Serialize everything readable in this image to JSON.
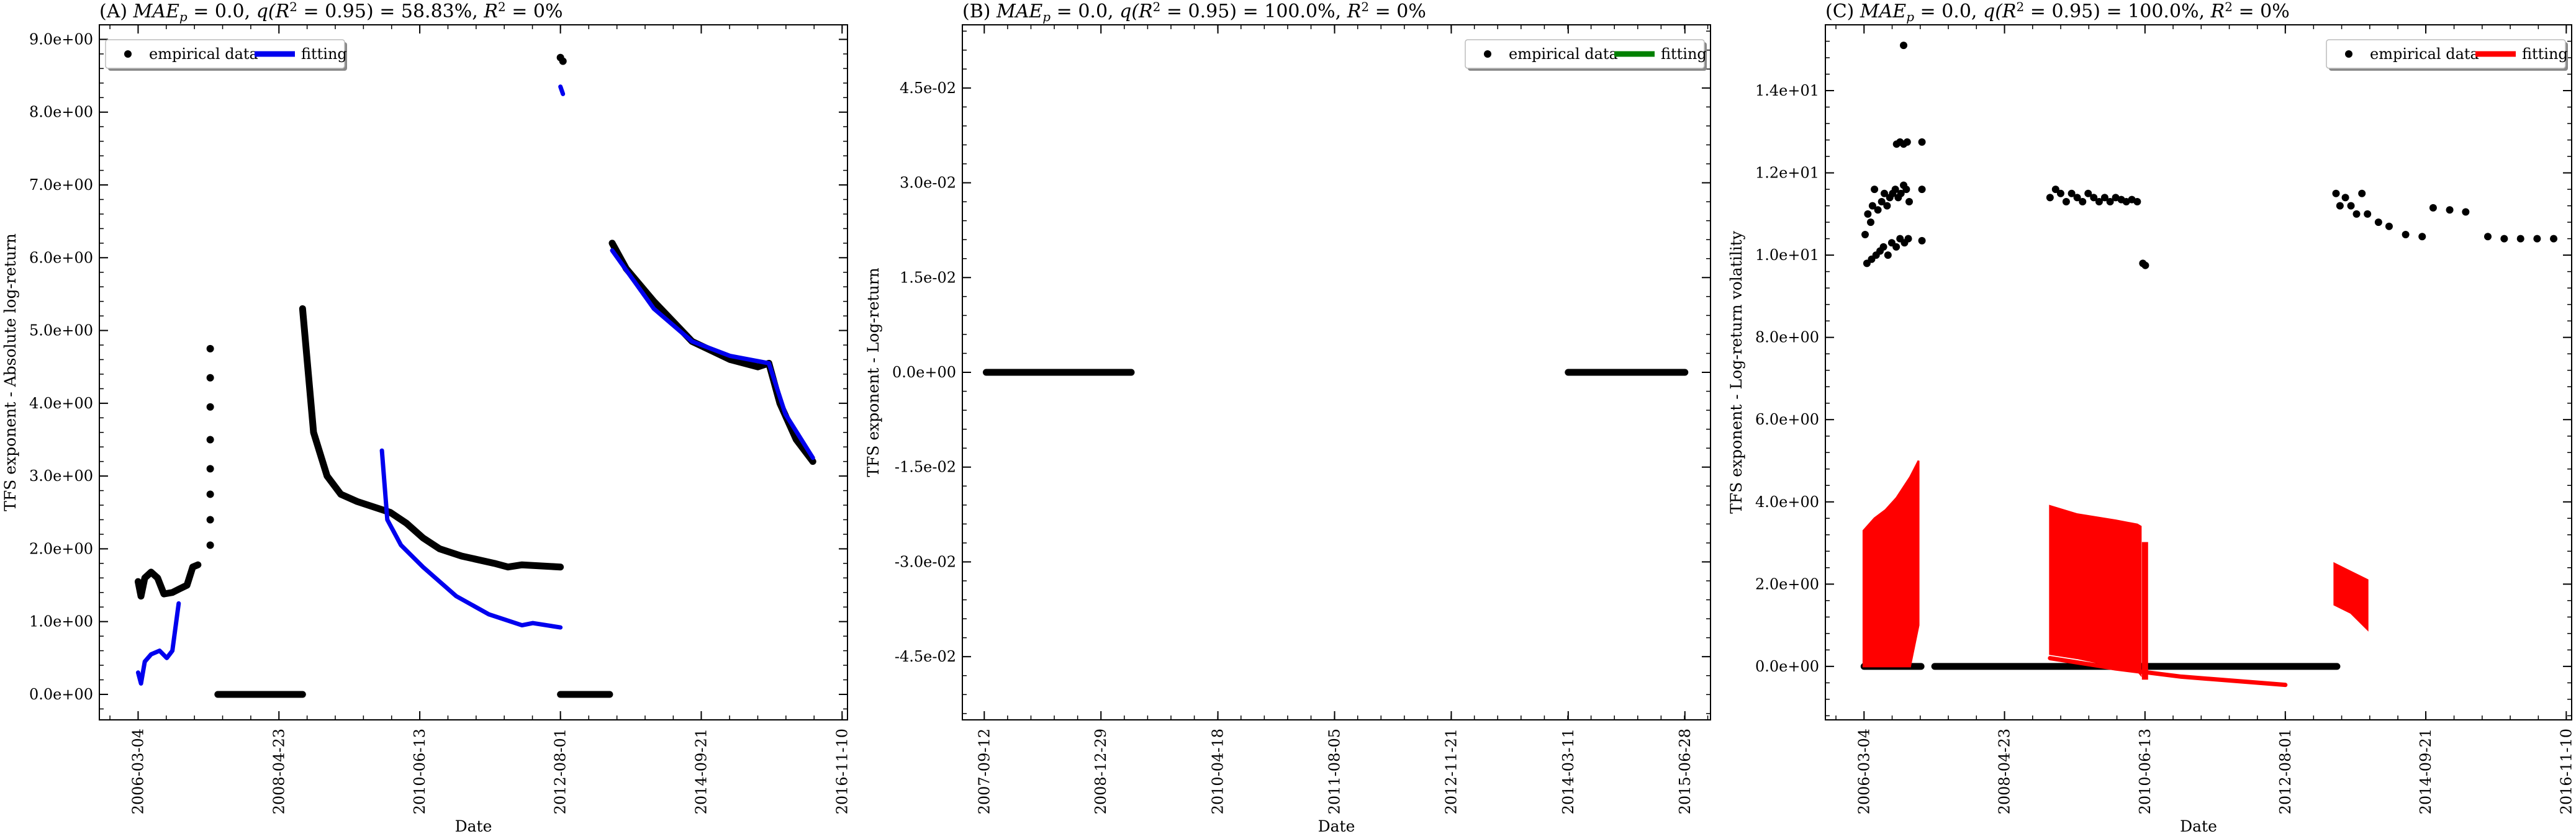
{
  "figure": {
    "title": ""
  },
  "chart_data": [
    {
      "id": "A",
      "type": "scatter",
      "title": "(A) MAE_p = 0.0, q(R² = 0.95) = 58.83%, R² = 0%",
      "title_parts": {
        "prefix": "(A) ",
        "mae_label": "MAE",
        "mae_sub": "p",
        "mae_value": " = 0.0, ",
        "q_label": "q(R",
        "q_tail": " = 0.95) = 58.83%, ",
        "r2_label": "R",
        "r2_tail": " = 0%"
      },
      "xlabel": "Date",
      "ylabel": "TFS exponent - Absolute log-return",
      "x_ticks": [
        "2006-03-04",
        "2008-04-23",
        "2010-06-13",
        "2012-08-01",
        "2014-09-21",
        "2016-11-10"
      ],
      "xlim": [
        "2005-08-01",
        "2016-12-10"
      ],
      "y_ticks": [
        "0.0e+00",
        "1.0e+00",
        "2.0e+00",
        "3.0e+00",
        "4.0e+00",
        "5.0e+00",
        "6.0e+00",
        "7.0e+00",
        "8.0e+00",
        "9.0e+00"
      ],
      "ylim": [
        -0.35,
        9.2
      ],
      "legend": {
        "position": "top-left",
        "entries": [
          "empirical data",
          "fitting"
        ]
      },
      "fit_color": "#0000ee",
      "empirical_color": "#000000",
      "series": [
        {
          "name": "empirical data",
          "kind": "thick",
          "points": [
            [
              "2006-03-04",
              1.55
            ],
            [
              "2006-03-20",
              1.35
            ],
            [
              "2006-04-10",
              1.6
            ],
            [
              "2006-05-15",
              1.68
            ],
            [
              "2006-06-20",
              1.6
            ],
            [
              "2006-07-25",
              1.38
            ],
            [
              "2006-09-10",
              1.4
            ],
            [
              "2006-10-20",
              1.45
            ],
            [
              "2006-11-30",
              1.5
            ],
            [
              "2007-01-01",
              1.75
            ],
            [
              "2007-01-30",
              1.78
            ]
          ]
        },
        {
          "name": "empirical data",
          "kind": "dots",
          "points": [
            [
              "2007-04-08",
              2.05
            ],
            [
              "2007-04-08",
              2.4
            ],
            [
              "2007-04-08",
              2.75
            ],
            [
              "2007-04-08",
              3.1
            ],
            [
              "2007-04-08",
              3.5
            ],
            [
              "2007-04-08",
              3.95
            ],
            [
              "2007-04-08",
              4.35
            ],
            [
              "2007-04-08",
              4.75
            ]
          ]
        },
        {
          "name": "empirical data",
          "kind": "thick",
          "points": [
            [
              "2007-05-20",
              0.0
            ],
            [
              "2008-09-01",
              0.0
            ]
          ]
        },
        {
          "name": "empirical data",
          "kind": "thick",
          "points": [
            [
              "2008-09-01",
              5.3
            ],
            [
              "2008-11-01",
              3.6
            ],
            [
              "2009-01-15",
              3.0
            ],
            [
              "2009-04-01",
              2.75
            ],
            [
              "2009-07-01",
              2.65
            ],
            [
              "2010-01-01",
              2.5
            ],
            [
              "2010-04-01",
              2.35
            ],
            [
              "2010-07-01",
              2.15
            ],
            [
              "2010-10-01",
              2.0
            ],
            [
              "2011-02-01",
              1.9
            ],
            [
              "2011-08-01",
              1.8
            ],
            [
              "2011-10-15",
              1.75
            ],
            [
              "2012-01-01",
              1.78
            ],
            [
              "2012-08-01",
              1.75
            ]
          ]
        },
        {
          "name": "empirical data",
          "kind": "dots",
          "points": [
            [
              "2012-08-01",
              8.75
            ],
            [
              "2012-08-15",
              8.7
            ]
          ]
        },
        {
          "name": "empirical data",
          "kind": "thick",
          "points": [
            [
              "2012-08-01",
              0.0
            ],
            [
              "2013-05-01",
              0.0
            ]
          ]
        },
        {
          "name": "empirical data",
          "kind": "thick",
          "points": [
            [
              "2013-05-15",
              6.2
            ],
            [
              "2013-08-01",
              5.85
            ],
            [
              "2014-01-01",
              5.4
            ],
            [
              "2014-08-01",
              4.85
            ],
            [
              "2015-03-01",
              4.6
            ],
            [
              "2015-08-01",
              4.5
            ],
            [
              "2015-10-01",
              4.55
            ],
            [
              "2015-12-01",
              4.0
            ],
            [
              "2016-03-01",
              3.5
            ],
            [
              "2016-06-01",
              3.2
            ]
          ]
        },
        {
          "name": "fitting",
          "kind": "line",
          "points": [
            [
              "2006-03-04",
              0.3
            ],
            [
              "2006-03-20",
              0.15
            ],
            [
              "2006-04-10",
              0.45
            ],
            [
              "2006-05-15",
              0.55
            ],
            [
              "2006-07-01",
              0.6
            ],
            [
              "2006-08-10",
              0.5
            ],
            [
              "2006-09-10",
              0.6
            ],
            [
              "2006-10-15",
              1.25
            ]
          ]
        },
        {
          "name": "fitting",
          "kind": "line",
          "points": [
            [
              "2009-11-15",
              3.35
            ],
            [
              "2009-12-15",
              2.4
            ],
            [
              "2010-03-01",
              2.05
            ],
            [
              "2010-07-01",
              1.75
            ],
            [
              "2011-01-01",
              1.35
            ],
            [
              "2011-07-01",
              1.1
            ],
            [
              "2012-01-01",
              0.95
            ],
            [
              "2012-03-01",
              0.98
            ],
            [
              "2012-08-01",
              0.92
            ]
          ]
        },
        {
          "name": "fitting",
          "kind": "line",
          "points": [
            [
              "2012-08-01",
              8.35
            ],
            [
              "2012-08-15",
              8.25
            ]
          ]
        },
        {
          "name": "fitting",
          "kind": "line",
          "points": [
            [
              "2013-05-15",
              6.1
            ],
            [
              "2014-01-01",
              5.3
            ],
            [
              "2014-08-01",
              4.85
            ],
            [
              "2015-03-01",
              4.65
            ],
            [
              "2015-10-01",
              4.55
            ],
            [
              "2016-01-01",
              3.85
            ],
            [
              "2016-06-01",
              3.25
            ]
          ]
        }
      ]
    },
    {
      "id": "B",
      "type": "scatter",
      "title": "(B) MAE_p = 0.0, q(R² = 0.95) = 100.0%, R² = 0%",
      "title_parts": {
        "prefix": "(B) ",
        "mae_label": "MAE",
        "mae_sub": "p",
        "mae_value": " = 0.0, ",
        "q_label": "q(R",
        "q_tail": " = 0.95) = 100.0%, ",
        "r2_label": "R",
        "r2_tail": " = 0%"
      },
      "xlabel": "Date",
      "ylabel": "TFS exponent - Log-return",
      "x_ticks": [
        "2007-09-12",
        "2008-12-29",
        "2010-04-18",
        "2011-08-05",
        "2012-11-21",
        "2014-03-11",
        "2015-06-28"
      ],
      "xlim": [
        "2007-06-15",
        "2015-10-10"
      ],
      "y_ticks": [
        "-4.5e-02",
        "-3.0e-02",
        "-1.5e-02",
        "0.0e+00",
        "1.5e-02",
        "3.0e-02",
        "4.5e-02"
      ],
      "ylim": [
        -0.055,
        0.055
      ],
      "legend": {
        "position": "top-right",
        "entries": [
          "empirical data",
          "fitting"
        ]
      },
      "fit_color": "#008000",
      "empirical_color": "#000000",
      "series": [
        {
          "name": "empirical data",
          "kind": "thick",
          "points": [
            [
              "2007-09-20",
              0.0
            ],
            [
              "2009-05-01",
              0.0
            ]
          ]
        },
        {
          "name": "empirical data",
          "kind": "thick",
          "points": [
            [
              "2014-03-11",
              0.0
            ],
            [
              "2015-06-28",
              0.0
            ]
          ]
        }
      ]
    },
    {
      "id": "C",
      "type": "scatter",
      "title": "(C) MAE_p = 0.0, q(R² = 0.95) = 100.0%, R² = 0%",
      "title_parts": {
        "prefix": "(C) ",
        "mae_label": "MAE",
        "mae_sub": "p",
        "mae_value": " = 0.0, ",
        "q_label": "q(R",
        "q_tail": " = 0.95) = 100.0%, ",
        "r2_label": "R",
        "r2_tail": " = 0%"
      },
      "xlabel": "Date",
      "ylabel": "TFS exponent - Log-return volatility",
      "x_ticks": [
        "2006-03-04",
        "2008-04-23",
        "2010-06-13",
        "2012-08-01",
        "2014-09-21",
        "2016-11-10"
      ],
      "xlim": [
        "2005-08-01",
        "2016-12-10"
      ],
      "y_ticks": [
        "0.0e+00",
        "2.0e+00",
        "4.0e+00",
        "6.0e+00",
        "8.0e+00",
        "1.0e+01",
        "1.2e+01",
        "1.4e+01"
      ],
      "ylim": [
        -1.3,
        15.6
      ],
      "legend": {
        "position": "top-right",
        "entries": [
          "empirical data",
          "fitting"
        ]
      },
      "fit_color": "#ff0000",
      "empirical_color": "#000000",
      "series": [
        {
          "name": "empirical data",
          "kind": "thick",
          "points": [
            [
              "2006-03-04",
              0.0
            ],
            [
              "2007-01-15",
              0.0
            ]
          ]
        },
        {
          "name": "empirical data",
          "kind": "thick",
          "points": [
            [
              "2007-04-01",
              0.0
            ],
            [
              "2013-05-15",
              0.0
            ]
          ]
        },
        {
          "name": "empirical data",
          "kind": "dots",
          "points": [
            [
              "2006-03-10",
              10.5
            ],
            [
              "2006-03-25",
              11.0
            ],
            [
              "2006-04-10",
              10.8
            ],
            [
              "2006-04-20",
              11.2
            ],
            [
              "2006-05-01",
              11.6
            ],
            [
              "2006-05-20",
              11.1
            ],
            [
              "2006-06-10",
              11.3
            ],
            [
              "2006-06-25",
              11.5
            ],
            [
              "2006-07-10",
              11.2
            ],
            [
              "2006-07-25",
              11.4
            ],
            [
              "2006-08-10",
              11.5
            ],
            [
              "2006-08-25",
              11.6
            ],
            [
              "2006-09-10",
              11.4
            ],
            [
              "2006-09-25",
              11.5
            ],
            [
              "2006-10-10",
              11.7
            ],
            [
              "2006-10-25",
              11.6
            ],
            [
              "2006-11-10",
              11.3
            ],
            [
              "2006-03-20",
              9.8
            ],
            [
              "2006-04-15",
              9.9
            ],
            [
              "2006-05-10",
              10.0
            ],
            [
              "2006-06-01",
              10.1
            ],
            [
              "2006-06-20",
              10.2
            ],
            [
              "2006-07-15",
              10.0
            ],
            [
              "2006-08-05",
              10.3
            ],
            [
              "2006-08-30",
              10.2
            ],
            [
              "2006-09-20",
              10.4
            ],
            [
              "2006-10-15",
              10.3
            ],
            [
              "2006-11-05",
              10.4
            ],
            [
              "2006-09-01",
              12.7
            ],
            [
              "2006-09-20",
              12.75
            ],
            [
              "2006-10-10",
              12.7
            ],
            [
              "2006-10-30",
              12.75
            ],
            [
              "2007-01-20",
              12.75
            ],
            [
              "2007-01-20",
              11.6
            ],
            [
              "2007-01-20",
              10.35
            ],
            [
              "2006-10-10",
              15.1
            ]
          ]
        },
        {
          "name": "empirical data",
          "kind": "dots",
          "points": [
            [
              "2009-01-01",
              11.4
            ],
            [
              "2009-02-01",
              11.6
            ],
            [
              "2009-03-01",
              11.5
            ],
            [
              "2009-04-01",
              11.3
            ],
            [
              "2009-05-01",
              11.5
            ],
            [
              "2009-06-01",
              11.4
            ],
            [
              "2009-07-01",
              11.3
            ],
            [
              "2009-08-01",
              11.5
            ],
            [
              "2009-09-01",
              11.4
            ],
            [
              "2009-10-01",
              11.3
            ],
            [
              "2009-11-01",
              11.4
            ],
            [
              "2009-12-01",
              11.3
            ],
            [
              "2010-01-01",
              11.4
            ],
            [
              "2010-02-01",
              11.35
            ],
            [
              "2010-03-01",
              11.3
            ],
            [
              "2010-04-01",
              11.35
            ],
            [
              "2010-05-01",
              11.3
            ],
            [
              "2010-06-01",
              9.8
            ],
            [
              "2010-06-15",
              9.75
            ]
          ]
        },
        {
          "name": "empirical data",
          "kind": "dots",
          "points": [
            [
              "2013-05-10",
              11.5
            ],
            [
              "2013-06-01",
              11.2
            ],
            [
              "2013-07-01",
              11.4
            ],
            [
              "2013-08-01",
              11.2
            ],
            [
              "2013-09-01",
              11.0
            ],
            [
              "2013-10-01",
              11.5
            ],
            [
              "2013-11-01",
              11.0
            ],
            [
              "2014-01-01",
              10.8
            ],
            [
              "2014-03-01",
              10.7
            ],
            [
              "2014-06-01",
              10.5
            ],
            [
              "2014-09-01",
              10.45
            ],
            [
              "2014-11-01",
              11.15
            ],
            [
              "2015-02-01",
              11.1
            ],
            [
              "2015-05-01",
              11.05
            ],
            [
              "2015-09-01",
              10.45
            ],
            [
              "2015-12-01",
              10.4
            ],
            [
              "2016-03-01",
              10.4
            ],
            [
              "2016-06-01",
              10.4
            ],
            [
              "2016-09-01",
              10.4
            ]
          ]
        },
        {
          "name": "fitting",
          "kind": "band",
          "points": [
            [
              "2006-03-01",
              0.0,
              3.3
            ],
            [
              "2006-05-01",
              0.0,
              3.6
            ],
            [
              "2006-07-01",
              0.0,
              3.8
            ],
            [
              "2006-09-01",
              0.0,
              4.1
            ],
            [
              "2006-11-15",
              0.0,
              4.6
            ],
            [
              "2007-01-01",
              1.0,
              5.0
            ]
          ]
        },
        {
          "name": "fitting",
          "kind": "band",
          "points": [
            [
              "2009-01-01",
              0.3,
              3.9
            ],
            [
              "2009-06-01",
              0.2,
              3.7
            ],
            [
              "2010-01-01",
              0.0,
              3.55
            ],
            [
              "2010-05-01",
              -0.1,
              3.45
            ],
            [
              "2010-05-20",
              -0.2,
              3.4
            ]
          ]
        },
        {
          "name": "fitting",
          "kind": "band",
          "points": [
            [
              "2010-06-01",
              -0.3,
              3.0
            ],
            [
              "2010-06-25",
              -0.3,
              3.0
            ]
          ]
        },
        {
          "name": "fitting",
          "kind": "band",
          "points": [
            [
              "2013-05-01",
              1.5,
              2.5
            ],
            [
              "2013-08-01",
              1.3,
              2.3
            ],
            [
              "2013-11-01",
              0.9,
              2.1
            ]
          ]
        },
        {
          "name": "fitting",
          "kind": "line",
          "points": [
            [
              "2009-01-01",
              0.2
            ],
            [
              "2010-01-01",
              -0.05
            ],
            [
              "2011-01-01",
              -0.25
            ],
            [
              "2012-08-01",
              -0.45
            ]
          ]
        }
      ]
    }
  ]
}
